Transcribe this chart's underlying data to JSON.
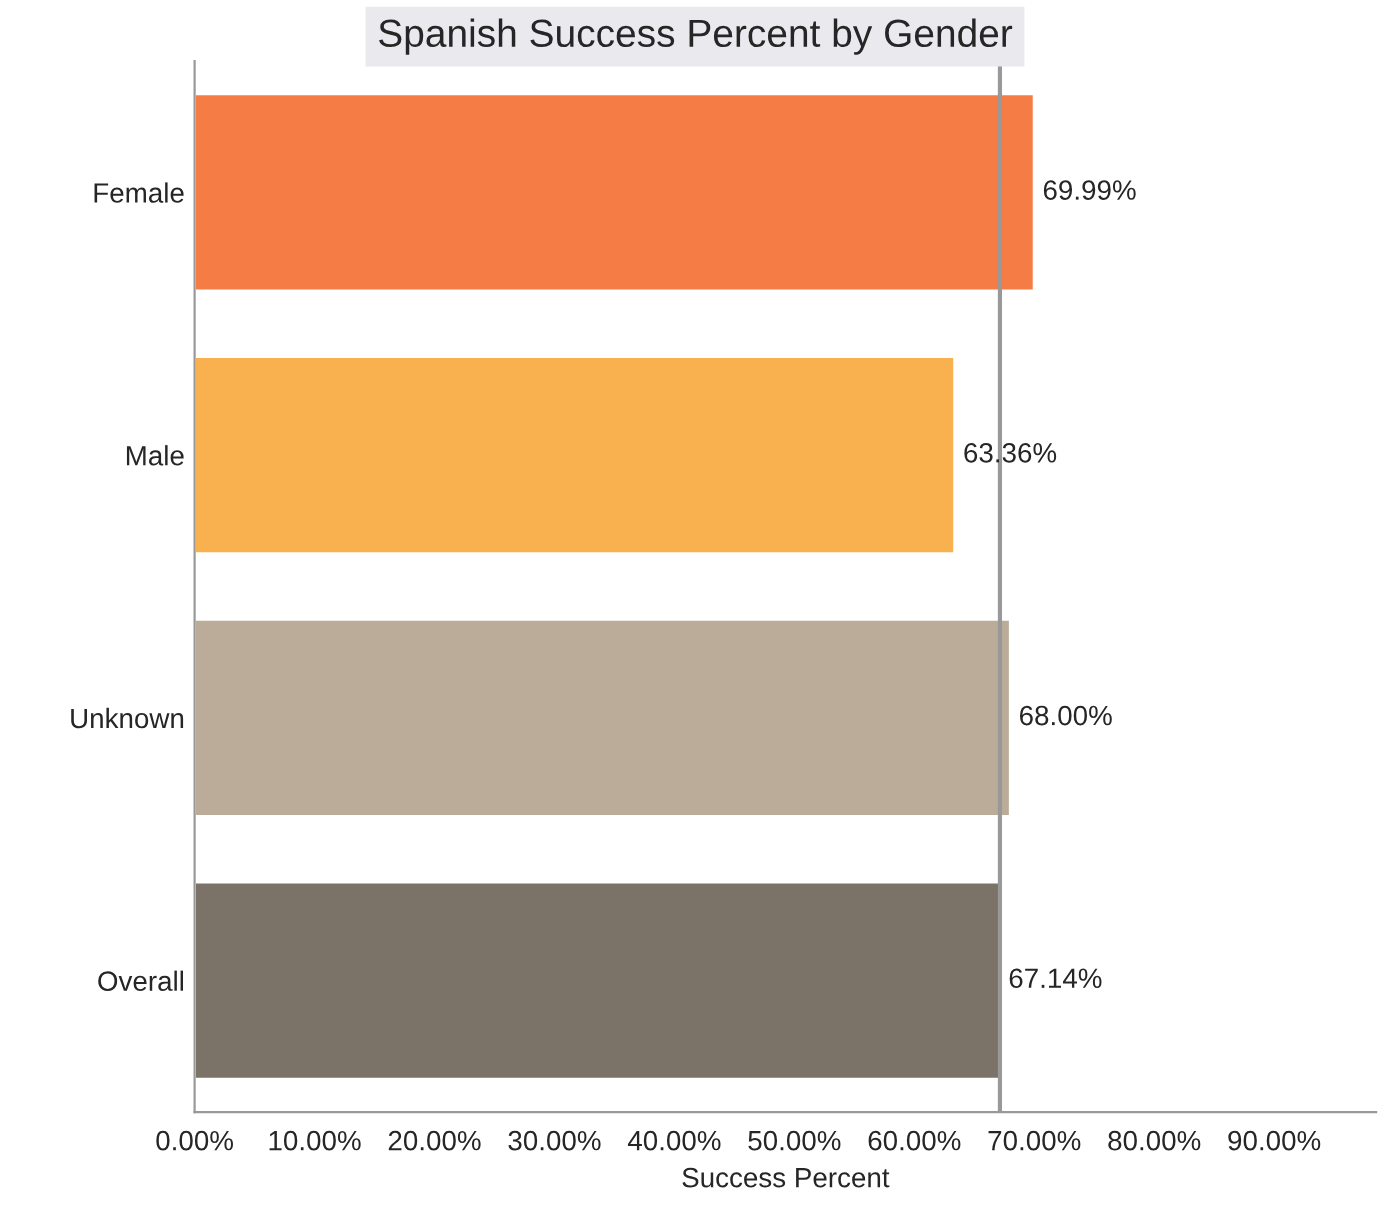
{
  "chart_data": {
    "type": "bar",
    "orientation": "horizontal",
    "title": "Spanish Success Percent by Gender",
    "xlabel": "Success Percent",
    "categories": [
      "Female",
      "Male",
      "Unknown",
      "Overall"
    ],
    "values": [
      69.99,
      63.36,
      68.0,
      67.14
    ],
    "colors": [
      "#f57c45",
      "#f9b04e",
      "#baac99",
      "#7b7268"
    ],
    "value_labels": [
      "69.99%",
      "63.36%",
      "68.00%",
      "67.14%"
    ],
    "xlim": [
      0,
      98.5
    ],
    "xticks": [
      {
        "value": 0,
        "label": "0.00%"
      },
      {
        "value": 10,
        "label": "10.00%"
      },
      {
        "value": 20,
        "label": "20.00%"
      },
      {
        "value": 30,
        "label": "30.00%"
      },
      {
        "value": 40,
        "label": "40.00%"
      },
      {
        "value": 50,
        "label": "50.00%"
      },
      {
        "value": 60,
        "label": "60.00%"
      },
      {
        "value": 70,
        "label": "70.00%"
      },
      {
        "value": 80,
        "label": "80.00%"
      },
      {
        "value": 90,
        "label": "90.00%"
      }
    ],
    "ref_lines": [
      {
        "axis": "x",
        "value": 67.14,
        "color": "#999999"
      }
    ],
    "grid": false,
    "legend": false
  }
}
